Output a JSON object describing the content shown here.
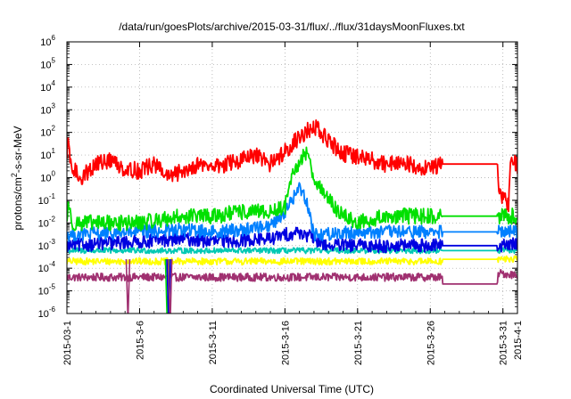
{
  "chart_data": {
    "type": "line",
    "title": "/data/run/goesPlots/archive/2015-03-31/flux/../flux/31daysMoonFluxes.txt",
    "xlabel": "Coordinated Universal Time (UTC)",
    "ylabel_main": "protons/cm",
    "ylabel_sup": "2",
    "ylabel_tail": "-s-sr-MeV",
    "y_scale": "log",
    "ylim_exponent": [
      -6,
      6
    ],
    "y_tick_base": "10",
    "y_tick_exponents": [
      "-6",
      "-5",
      "-4",
      "-3",
      "-2",
      "-1",
      "0",
      "1",
      "2",
      "3",
      "4",
      "5",
      "6"
    ],
    "x_range": [
      "2015-03-01",
      "2015-04-01"
    ],
    "x_ticks": [
      {
        "label": "2015-03-1",
        "day": 0
      },
      {
        "label": "2015-3-6",
        "day": 5
      },
      {
        "label": "2015-3-11",
        "day": 10
      },
      {
        "label": "2015-3-16",
        "day": 15
      },
      {
        "label": "2015-3-21",
        "day": 20
      },
      {
        "label": "2015-3-26",
        "day": 25
      },
      {
        "label": "2015-3-31",
        "day": 30
      },
      {
        "label": "2015-4-1",
        "day": 31
      }
    ],
    "grid": true,
    "legend": "none",
    "series": [
      {
        "color": "#ff0000",
        "base": 3,
        "noise": 0.75,
        "points": [
          [
            0,
            3
          ],
          [
            0.1,
            80
          ],
          [
            0.25,
            3
          ],
          [
            1,
            1
          ],
          [
            2,
            4
          ],
          [
            3,
            6
          ],
          [
            4,
            2.5
          ],
          [
            5,
            2
          ],
          [
            6,
            4
          ],
          [
            7,
            1
          ],
          [
            8,
            2
          ],
          [
            9,
            4
          ],
          [
            10,
            3
          ],
          [
            11,
            4
          ],
          [
            12,
            6
          ],
          [
            13,
            9
          ],
          [
            14,
            4
          ],
          [
            15,
            15
          ],
          [
            16,
            60
          ],
          [
            17,
            200
          ],
          [
            18,
            40
          ],
          [
            19,
            12
          ],
          [
            20,
            8
          ],
          [
            21,
            6
          ],
          [
            22,
            4
          ],
          [
            23,
            5
          ],
          [
            24,
            3
          ],
          [
            25,
            3
          ],
          [
            25.8,
            4
          ],
          [
            25.85,
            4
          ],
          [
            29.6,
            4
          ],
          [
            29.7,
            0.3
          ],
          [
            30.2,
            0.08
          ],
          [
            30.4,
            0.06
          ],
          [
            30.5,
            8
          ],
          [
            31,
            3
          ]
        ]
      },
      {
        "color": "#00e000",
        "base": 0.012,
        "noise": 0.7,
        "points": [
          [
            0,
            0.01
          ],
          [
            0.1,
            0.1
          ],
          [
            0.3,
            0.01
          ],
          [
            5,
            0.01
          ],
          [
            8,
            0.02
          ],
          [
            10,
            0.02
          ],
          [
            12,
            0.03
          ],
          [
            14,
            0.03
          ],
          [
            15,
            0.05
          ],
          [
            15.5,
            1
          ],
          [
            16,
            5
          ],
          [
            16.5,
            15
          ],
          [
            17,
            1
          ],
          [
            18,
            0.1
          ],
          [
            19,
            0.02
          ],
          [
            20,
            0.01
          ],
          [
            22,
            0.02
          ],
          [
            24,
            0.02
          ],
          [
            25.8,
            0.02
          ],
          [
            25.85,
            0.02
          ],
          [
            31,
            0.02
          ]
        ]
      },
      {
        "color": "#0080ff",
        "base": 0.004,
        "noise": 0.6,
        "points": [
          [
            0,
            0.003
          ],
          [
            5,
            0.004
          ],
          [
            8,
            0.005
          ],
          [
            10,
            0.004
          ],
          [
            12,
            0.005
          ],
          [
            14,
            0.008
          ],
          [
            15,
            0.03
          ],
          [
            15.5,
            0.1
          ],
          [
            16,
            0.4
          ],
          [
            16.5,
            0.1
          ],
          [
            17,
            0.003
          ],
          [
            20,
            0.004
          ],
          [
            24,
            0.004
          ],
          [
            25.8,
            0.004
          ],
          [
            25.85,
            0.004
          ],
          [
            31,
            0.004
          ]
        ]
      },
      {
        "color": "#0000e0",
        "base": 0.0012,
        "noise": 0.6,
        "points": [
          [
            0,
            0.001
          ],
          [
            5,
            0.0015
          ],
          [
            8,
            0.002
          ],
          [
            10,
            0.0015
          ],
          [
            14,
            0.002
          ],
          [
            15,
            0.003
          ],
          [
            16,
            0.004
          ],
          [
            17,
            0.002
          ],
          [
            18,
            0.001
          ],
          [
            25.8,
            0.001
          ],
          [
            25.85,
            0.001
          ],
          [
            29.8,
            0.001
          ],
          [
            30,
            0.001
          ],
          [
            31,
            0.0012
          ]
        ]
      },
      {
        "color": "#00c8b4",
        "base": 0.0006,
        "noise": 0.25,
        "points": [
          [
            0,
            0.0006
          ],
          [
            25.8,
            0.0006
          ],
          [
            25.85,
            0.0006
          ],
          [
            31,
            0.0006
          ]
        ]
      },
      {
        "color": "#ffff00",
        "base": 0.00022,
        "noise": 0.3,
        "points": [
          [
            0,
            0.0002
          ],
          [
            25.8,
            0.0002
          ],
          [
            25.85,
            0.00025
          ],
          [
            31,
            0.00025
          ]
        ]
      },
      {
        "color": "#a03070",
        "base": 4e-05,
        "noise": 0.35,
        "points": [
          [
            0,
            4e-05
          ],
          [
            25.8,
            4e-05
          ],
          [
            25.85,
            2e-05
          ],
          [
            29.6,
            2e-05
          ],
          [
            29.7,
            6e-05
          ],
          [
            31,
            5e-05
          ]
        ]
      }
    ],
    "dips": [
      {
        "color": "#a03070",
        "day": 4.2,
        "low_exponent": -6.3
      },
      {
        "color": "#00e000",
        "day": 6.9,
        "low_exponent": -6.4
      },
      {
        "color": "#0000e0",
        "day": 7.0,
        "low_exponent": -6.5
      },
      {
        "color": "#a03070",
        "day": 7.1,
        "low_exponent": -6.6
      }
    ]
  }
}
